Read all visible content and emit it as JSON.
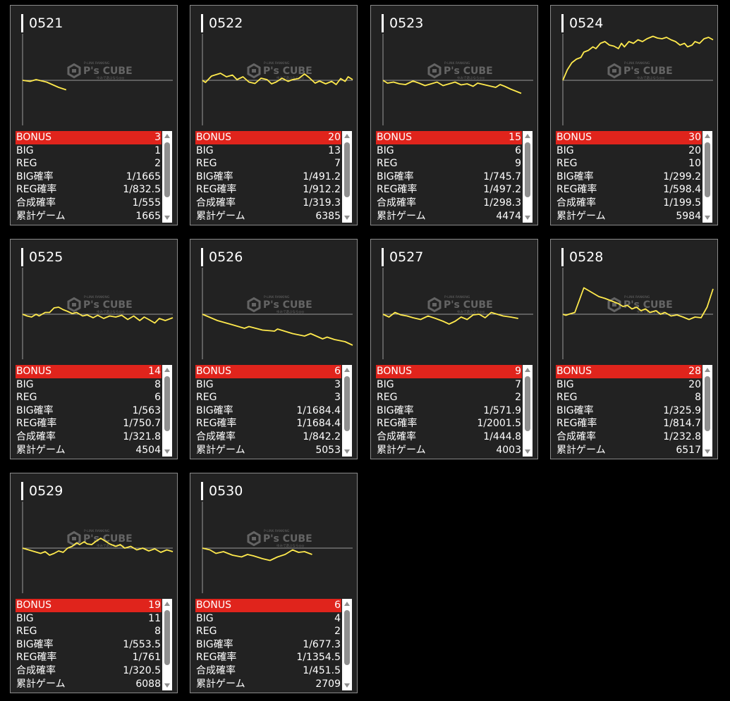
{
  "labels": {
    "bonus": "BONUS",
    "big": "BIG",
    "reg": "REG",
    "big_rate": "BIG確率",
    "reg_rate": "REG確率",
    "total_rate": "合成確率",
    "games": "累計ゲーム"
  },
  "watermark": {
    "brand": "P's CUBE",
    "top": "P-LINK RANKING",
    "sub": "ゆみで遊ぶなら◎◎"
  },
  "colors": {
    "accent": "#e0241c",
    "line": "#ffea4d",
    "card": "#222222"
  },
  "machines": [
    {
      "id": "0521",
      "bonus": "3",
      "big": "1",
      "reg": "2",
      "big_rate": "1/1665",
      "reg_rate": "1/832.5",
      "total_rate": "1/555",
      "games": "1665",
      "graph": [
        [
          0,
          0
        ],
        [
          0.05,
          -0.03
        ],
        [
          0.09,
          0.02
        ],
        [
          0.16,
          -0.05
        ],
        [
          0.24,
          -0.2
        ],
        [
          0.29,
          -0.27
        ]
      ]
    },
    {
      "id": "0522",
      "bonus": "20",
      "big": "13",
      "reg": "7",
      "big_rate": "1/491.2",
      "reg_rate": "1/912.2",
      "total_rate": "1/319.3",
      "games": "6385",
      "graph": [
        [
          0,
          0
        ],
        [
          0.02,
          -0.06
        ],
        [
          0.06,
          0.12
        ],
        [
          0.12,
          0.2
        ],
        [
          0.16,
          0.1
        ],
        [
          0.2,
          0.15
        ],
        [
          0.23,
          0.02
        ],
        [
          0.27,
          0.1
        ],
        [
          0.31,
          -0.05
        ],
        [
          0.35,
          -0.09
        ],
        [
          0.39,
          0.06
        ],
        [
          0.43,
          0.02
        ],
        [
          0.46,
          -0.1
        ],
        [
          0.49,
          -0.05
        ],
        [
          0.53,
          0.06
        ],
        [
          0.57,
          -0.03
        ],
        [
          0.6,
          0.02
        ],
        [
          0.64,
          0.05
        ],
        [
          0.68,
          0.18
        ],
        [
          0.71,
          0.08
        ],
        [
          0.75,
          -0.08
        ],
        [
          0.78,
          -0.02
        ],
        [
          0.82,
          -0.1
        ],
        [
          0.86,
          -0.03
        ],
        [
          0.89,
          -0.12
        ],
        [
          0.92,
          0.05
        ],
        [
          0.95,
          -0.03
        ],
        [
          0.97,
          0.1
        ],
        [
          1,
          0.02
        ]
      ]
    },
    {
      "id": "0523",
      "bonus": "15",
      "big": "6",
      "reg": "9",
      "big_rate": "1/745.7",
      "reg_rate": "1/497.2",
      "total_rate": "1/298.3",
      "games": "4474",
      "graph": [
        [
          0,
          0
        ],
        [
          0.03,
          -0.08
        ],
        [
          0.07,
          -0.05
        ],
        [
          0.11,
          -0.1
        ],
        [
          0.15,
          -0.12
        ],
        [
          0.2,
          -0.02
        ],
        [
          0.24,
          -0.08
        ],
        [
          0.28,
          -0.15
        ],
        [
          0.32,
          -0.1
        ],
        [
          0.36,
          -0.05
        ],
        [
          0.4,
          -0.15
        ],
        [
          0.44,
          -0.1
        ],
        [
          0.48,
          -0.05
        ],
        [
          0.52,
          -0.13
        ],
        [
          0.56,
          -0.1
        ],
        [
          0.6,
          -0.17
        ],
        [
          0.63,
          -0.08
        ],
        [
          0.67,
          -0.12
        ],
        [
          0.71,
          -0.16
        ],
        [
          0.75,
          -0.2
        ],
        [
          0.78,
          -0.12
        ],
        [
          0.81,
          -0.17
        ],
        [
          0.85,
          -0.25
        ],
        [
          0.88,
          -0.3
        ],
        [
          0.92,
          -0.37
        ]
      ]
    },
    {
      "id": "0524",
      "bonus": "30",
      "big": "20",
      "reg": "10",
      "big_rate": "1/299.2",
      "reg_rate": "1/598.4",
      "total_rate": "1/199.5",
      "games": "5984",
      "graph": [
        [
          0,
          0
        ],
        [
          0.03,
          0.3
        ],
        [
          0.06,
          0.5
        ],
        [
          0.09,
          0.6
        ],
        [
          0.12,
          0.65
        ],
        [
          0.14,
          0.8
        ],
        [
          0.17,
          0.85
        ],
        [
          0.2,
          0.95
        ],
        [
          0.22,
          0.9
        ],
        [
          0.25,
          1.05
        ],
        [
          0.28,
          1.1
        ],
        [
          0.31,
          1.0
        ],
        [
          0.34,
          0.97
        ],
        [
          0.37,
          0.9
        ],
        [
          0.39,
          1.05
        ],
        [
          0.41,
          0.95
        ],
        [
          0.44,
          1.1
        ],
        [
          0.47,
          1.05
        ],
        [
          0.5,
          1.15
        ],
        [
          0.53,
          1.1
        ],
        [
          0.56,
          1.18
        ],
        [
          0.6,
          1.25
        ],
        [
          0.63,
          1.2
        ],
        [
          0.66,
          1.18
        ],
        [
          0.69,
          1.22
        ],
        [
          0.72,
          1.15
        ],
        [
          0.75,
          1.1
        ],
        [
          0.78,
          1.0
        ],
        [
          0.81,
          1.05
        ],
        [
          0.83,
          0.95
        ],
        [
          0.86,
          1.0
        ],
        [
          0.88,
          1.1
        ],
        [
          0.91,
          1.05
        ],
        [
          0.94,
          1.18
        ],
        [
          0.97,
          1.22
        ],
        [
          1,
          1.15
        ]
      ]
    },
    {
      "id": "0525",
      "bonus": "14",
      "big": "8",
      "reg": "6",
      "big_rate": "1/563",
      "reg_rate": "1/750.7",
      "total_rate": "1/321.8",
      "games": "4504",
      "graph": [
        [
          0,
          0
        ],
        [
          0.03,
          -0.05
        ],
        [
          0.06,
          -0.08
        ],
        [
          0.09,
          0.0
        ],
        [
          0.11,
          -0.05
        ],
        [
          0.15,
          0.05
        ],
        [
          0.18,
          0.05
        ],
        [
          0.21,
          0.18
        ],
        [
          0.24,
          0.2
        ],
        [
          0.27,
          0.13
        ],
        [
          0.3,
          0.08
        ],
        [
          0.33,
          0.02
        ],
        [
          0.36,
          0.05
        ],
        [
          0.4,
          -0.05
        ],
        [
          0.43,
          -0.02
        ],
        [
          0.47,
          -0.1
        ],
        [
          0.5,
          -0.03
        ],
        [
          0.54,
          -0.12
        ],
        [
          0.58,
          -0.05
        ],
        [
          0.62,
          -0.08
        ],
        [
          0.66,
          -0.03
        ],
        [
          0.7,
          -0.15
        ],
        [
          0.74,
          -0.05
        ],
        [
          0.78,
          -0.18
        ],
        [
          0.81,
          -0.08
        ],
        [
          0.84,
          -0.15
        ],
        [
          0.88,
          -0.25
        ],
        [
          0.91,
          -0.12
        ],
        [
          0.95,
          -0.18
        ],
        [
          1,
          -0.1
        ]
      ]
    },
    {
      "id": "0526",
      "bonus": "6",
      "big": "3",
      "reg": "3",
      "big_rate": "1/1684.4",
      "reg_rate": "1/1684.4",
      "total_rate": "1/842.2",
      "games": "5053",
      "graph": [
        [
          0,
          0
        ],
        [
          0.1,
          -0.18
        ],
        [
          0.2,
          -0.3
        ],
        [
          0.28,
          -0.4
        ],
        [
          0.31,
          -0.35
        ],
        [
          0.4,
          -0.45
        ],
        [
          0.48,
          -0.48
        ],
        [
          0.5,
          -0.42
        ],
        [
          0.6,
          -0.55
        ],
        [
          0.68,
          -0.62
        ],
        [
          0.72,
          -0.55
        ],
        [
          0.8,
          -0.7
        ],
        [
          0.83,
          -0.65
        ],
        [
          0.88,
          -0.72
        ],
        [
          0.95,
          -0.78
        ],
        [
          1,
          -0.88
        ]
      ]
    },
    {
      "id": "0527",
      "bonus": "9",
      "big": "7",
      "reg": "2",
      "big_rate": "1/571.9",
      "reg_rate": "1/2001.5",
      "total_rate": "1/444.8",
      "games": "4003",
      "graph": [
        [
          0,
          0
        ],
        [
          0.04,
          -0.08
        ],
        [
          0.08,
          0.05
        ],
        [
          0.12,
          -0.02
        ],
        [
          0.16,
          -0.05
        ],
        [
          0.2,
          -0.1
        ],
        [
          0.25,
          -0.15
        ],
        [
          0.3,
          -0.05
        ],
        [
          0.35,
          -0.12
        ],
        [
          0.4,
          -0.2
        ],
        [
          0.44,
          -0.28
        ],
        [
          0.48,
          -0.2
        ],
        [
          0.52,
          -0.08
        ],
        [
          0.56,
          -0.15
        ],
        [
          0.6,
          -0.02
        ],
        [
          0.64,
          0.0
        ],
        [
          0.68,
          -0.1
        ],
        [
          0.72,
          0.05
        ],
        [
          0.76,
          0.0
        ],
        [
          0.8,
          -0.05
        ],
        [
          0.85,
          -0.08
        ],
        [
          0.9,
          -0.12
        ]
      ]
    },
    {
      "id": "0528",
      "bonus": "28",
      "big": "20",
      "reg": "8",
      "big_rate": "1/325.9",
      "reg_rate": "1/814.7",
      "total_rate": "1/232.8",
      "games": "6517",
      "graph": [
        [
          0,
          0
        ],
        [
          0.02,
          -0.03
        ],
        [
          0.04,
          0.0
        ],
        [
          0.08,
          0.05
        ],
        [
          0.11,
          0.4
        ],
        [
          0.14,
          0.75
        ],
        [
          0.16,
          0.7
        ],
        [
          0.2,
          0.6
        ],
        [
          0.24,
          0.5
        ],
        [
          0.28,
          0.45
        ],
        [
          0.31,
          0.4
        ],
        [
          0.34,
          0.35
        ],
        [
          0.37,
          0.3
        ],
        [
          0.4,
          0.22
        ],
        [
          0.43,
          0.25
        ],
        [
          0.46,
          0.15
        ],
        [
          0.49,
          0.2
        ],
        [
          0.52,
          0.1
        ],
        [
          0.55,
          0.15
        ],
        [
          0.58,
          0.05
        ],
        [
          0.62,
          0.1
        ],
        [
          0.65,
          0.0
        ],
        [
          0.68,
          0.05
        ],
        [
          0.72,
          -0.05
        ],
        [
          0.76,
          -0.02
        ],
        [
          0.8,
          -0.08
        ],
        [
          0.84,
          -0.15
        ],
        [
          0.88,
          -0.08
        ],
        [
          0.92,
          -0.1
        ],
        [
          0.96,
          0.2
        ],
        [
          1,
          0.72
        ]
      ]
    },
    {
      "id": "0529",
      "bonus": "19",
      "big": "11",
      "reg": "8",
      "big_rate": "1/553.5",
      "reg_rate": "1/761",
      "total_rate": "1/320.5",
      "games": "6088",
      "graph": [
        [
          0,
          0
        ],
        [
          0.04,
          -0.05
        ],
        [
          0.08,
          -0.1
        ],
        [
          0.12,
          -0.15
        ],
        [
          0.15,
          -0.1
        ],
        [
          0.18,
          -0.2
        ],
        [
          0.21,
          -0.15
        ],
        [
          0.24,
          -0.08
        ],
        [
          0.27,
          -0.12
        ],
        [
          0.3,
          0.0
        ],
        [
          0.33,
          0.05
        ],
        [
          0.36,
          0.15
        ],
        [
          0.38,
          0.1
        ],
        [
          0.41,
          0.18
        ],
        [
          0.43,
          0.12
        ],
        [
          0.46,
          0.1
        ],
        [
          0.49,
          0.2
        ],
        [
          0.52,
          0.28
        ],
        [
          0.55,
          0.2
        ],
        [
          0.58,
          0.12
        ],
        [
          0.62,
          0.05
        ],
        [
          0.65,
          0.1
        ],
        [
          0.68,
          0.0
        ],
        [
          0.72,
          0.05
        ],
        [
          0.76,
          -0.05
        ],
        [
          0.8,
          0.0
        ],
        [
          0.84,
          -0.08
        ],
        [
          0.88,
          -0.02
        ],
        [
          0.92,
          -0.12
        ],
        [
          0.96,
          -0.05
        ],
        [
          1,
          -0.1
        ]
      ]
    },
    {
      "id": "0530",
      "bonus": "6",
      "big": "4",
      "reg": "2",
      "big_rate": "1/677.3",
      "reg_rate": "1/1354.5",
      "total_rate": "1/451.5",
      "games": "2709",
      "graph": [
        [
          0,
          0
        ],
        [
          0.05,
          -0.05
        ],
        [
          0.09,
          -0.15
        ],
        [
          0.14,
          -0.1
        ],
        [
          0.2,
          -0.2
        ],
        [
          0.26,
          -0.25
        ],
        [
          0.3,
          -0.18
        ],
        [
          0.34,
          -0.22
        ],
        [
          0.4,
          -0.3
        ],
        [
          0.45,
          -0.35
        ],
        [
          0.5,
          -0.25
        ],
        [
          0.55,
          -0.18
        ],
        [
          0.6,
          -0.05
        ],
        [
          0.64,
          -0.12
        ],
        [
          0.68,
          -0.1
        ],
        [
          0.73,
          -0.18
        ]
      ]
    }
  ]
}
